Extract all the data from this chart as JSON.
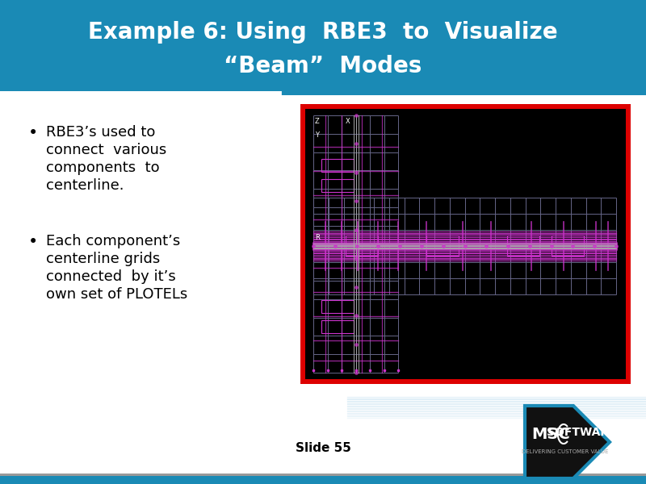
{
  "title_line1": "Example 6: Using  RBE3  to  Visualize",
  "title_line2": "“Beam”  Modes",
  "title_bg_color": "#1a8ab5",
  "title_text_color": "#ffffff",
  "body_bg_color": "#ffffff",
  "bullet1_lines": [
    "RBE3’s used to",
    "connect  various",
    "components  to",
    "centerline."
  ],
  "bullet2_lines": [
    "Each component’s",
    "centerline grids",
    "connected  by it’s",
    "own set of PLOTELs"
  ],
  "slide_label": "Slide 55",
  "red_border_color": "#dd0000",
  "image_bg_color": "#000000",
  "accent_color": "#1a8ab5",
  "grid_color": "#666688",
  "magenta_color": "#cc33cc",
  "white_line_color": "#cccccc",
  "bottom_blue_color": "#1a8ab5",
  "bottom_gray_color": "#999999"
}
